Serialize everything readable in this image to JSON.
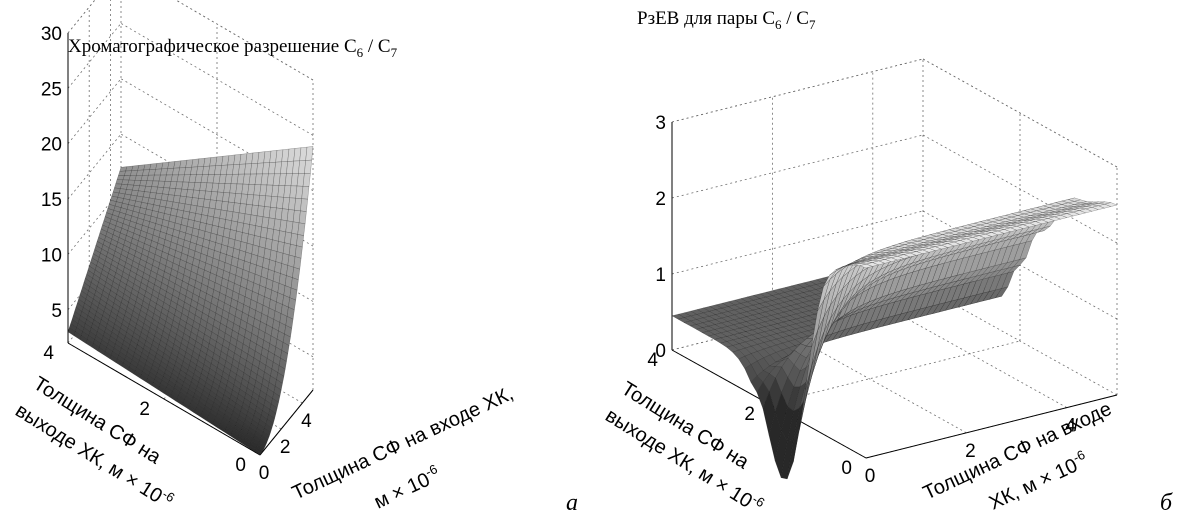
{
  "chart_data": [
    {
      "type": "surface",
      "panel_letter": "а",
      "title": "Хроматографическое разрешение C",
      "title_sub1": "6",
      "title_mid": " / C",
      "title_sub2": "7",
      "xlabel": "Толщина СФ на входе ХК,",
      "xlabel_unit": "м × 10",
      "xlabel_exp": "-6",
      "ylabel_line1": "Толщина СФ на",
      "ylabel_line2": "выходе ХК, м × 10",
      "ylabel_exp": "-6",
      "x_ticks": [
        "0",
        "2",
        "4"
      ],
      "y_ticks": [
        "0",
        "2",
        "4"
      ],
      "z_ticks": [
        "5",
        "10",
        "15",
        "20",
        "25",
        "30"
      ],
      "x_range": [
        0,
        5
      ],
      "y_range": [
        0,
        4
      ],
      "zlim": [
        2,
        30
      ],
      "grid": true,
      "corners": [
        {
          "x": 0,
          "y": 0,
          "z": 2.0
        },
        {
          "x": 5,
          "y": 0,
          "z": 24.0
        },
        {
          "x": 0,
          "y": 4,
          "z": 3.0
        },
        {
          "x": 5,
          "y": 4,
          "z": 12.0
        }
      ],
      "colormap": "gray"
    },
    {
      "type": "surface",
      "panel_letter": "б",
      "title": "РзЕВ для пары C",
      "title_sub1": "6",
      "title_mid": " / C",
      "title_sub2": "7",
      "xlabel": "Толщина СФ на входе",
      "xlabel_unit": "ХК, м × 10",
      "xlabel_exp": "-6",
      "ylabel_line1": "Толщина СФ на",
      "ylabel_line2": "выходе ХК, м × 10",
      "ylabel_exp": "-6",
      "x_ticks": [
        "0",
        "2",
        "4"
      ],
      "y_ticks": [
        "0",
        "2",
        "4"
      ],
      "z_ticks": [
        "0",
        "1",
        "2",
        "3"
      ],
      "x_range": [
        0,
        5
      ],
      "y_range": [
        0,
        4
      ],
      "zlim": [
        0,
        3
      ],
      "grid": true,
      "surface_profile": [
        {
          "y": 0.0,
          "z": 2.5
        },
        {
          "y": 0.8,
          "z": 2.3
        },
        {
          "y": 1.6,
          "z": 1.6
        },
        {
          "y": 2.0,
          "z": 1.0
        },
        {
          "y": 2.4,
          "z": 0.45
        },
        {
          "y": 3.0,
          "z": 0.45
        },
        {
          "y": 4.0,
          "z": 0.45
        }
      ],
      "dip_minimum": {
        "x": 0,
        "y": 1.7,
        "z": -0.9
      },
      "colormap": "gray"
    }
  ]
}
